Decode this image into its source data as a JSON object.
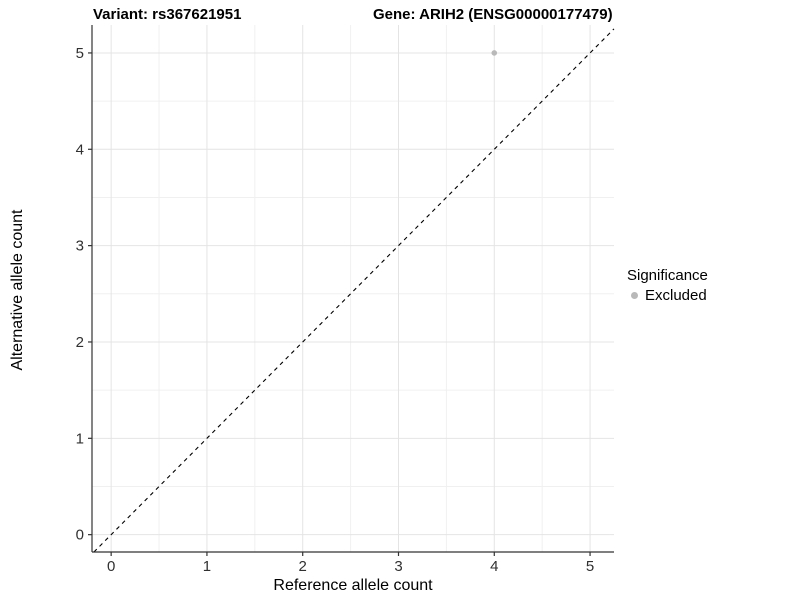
{
  "titles": {
    "variant": "Variant: rs367621951",
    "gene": "Gene: ARIH2 (ENSG00000177479)"
  },
  "chart_data": {
    "type": "scatter",
    "title_left": "Variant: rs367621951",
    "title_right": "Gene: ARIH2 (ENSG00000177479)",
    "xlabel": "Reference allele count",
    "ylabel": "Alternative allele count",
    "xticks": [
      0,
      1,
      2,
      3,
      4,
      5
    ],
    "yticks": [
      0,
      1,
      2,
      3,
      4,
      5
    ],
    "xlim": [
      -0.2,
      5.25
    ],
    "ylim": [
      -0.18,
      5.29
    ],
    "minor_step": 0.5,
    "grid": true,
    "points": [
      {
        "x": 4,
        "y": 5,
        "series": "Excluded"
      }
    ],
    "reference_line": {
      "type": "identity",
      "style": "dashed",
      "comment": "y = x diagonal"
    },
    "legend": {
      "title": "Significance",
      "position": "right",
      "entries": [
        {
          "label": "Excluded",
          "color": "#b9b9b9"
        }
      ]
    },
    "colors": {
      "point": "#b9b9b9",
      "grid_major": "#e4e4e4",
      "grid_minor": "#f0f0f0",
      "axis_line": "#333333",
      "tick": "#333333",
      "tick_label": "#303030",
      "dashed_line": "#000000",
      "background": "#ffffff"
    },
    "tick_label_size": 15
  }
}
